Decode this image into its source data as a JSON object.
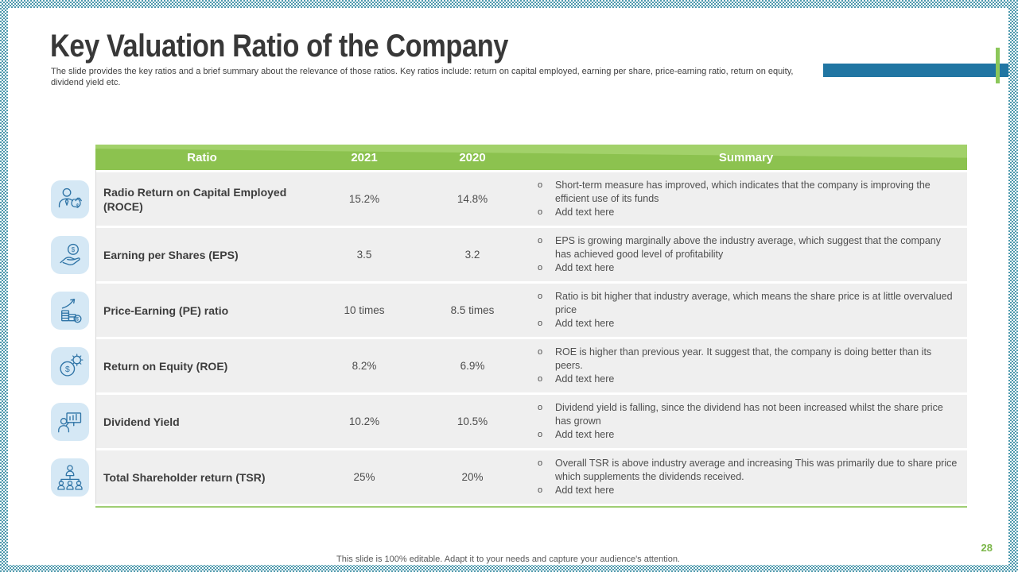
{
  "slide": {
    "title": "Key Valuation Ratio of the Company",
    "subtitle": "The slide provides the key ratios and a brief summary about the relevance of those ratios. Key ratios include: return on capital employed, earning per share, price-earning ratio, return on equity,  dividend yield etc.",
    "footer": "This slide is 100% editable. Adapt it to your needs and capture your audience's attention.",
    "page_number": "28"
  },
  "colors": {
    "accent_green": "#8cc24f",
    "accent_blue": "#2176a3",
    "tick_green": "#8cc75a",
    "icon_stroke_blue": "#2f74a6",
    "icon_bg_blue": "#d5e8f5",
    "row_bg": "#efefef",
    "border_teal": "#4d99ad",
    "page_number_green": "#7ab648"
  },
  "table": {
    "headers": [
      "Ratio",
      "2021",
      "2020",
      "Summary"
    ],
    "rows": [
      {
        "icon": "businessman-money-bag-icon",
        "ratio": "Radio Return on Capital Employed (ROCE)",
        "y2021": "15.2%",
        "y2020": "14.8%",
        "summary": [
          "Short-term measure has improved, which indicates that the company is improving the efficient use of its funds",
          "Add text here"
        ]
      },
      {
        "icon": "hand-dollar-coin-icon",
        "ratio": "Earning per Shares (EPS)",
        "y2021": "3.5",
        "y2020": "3.2",
        "summary": [
          "EPS is growing marginally above the industry average, which suggest that the company has achieved good level of profitability",
          "Add text here"
        ]
      },
      {
        "icon": "coins-growth-arrow-icon",
        "ratio": "Price-Earning (PE) ratio",
        "y2021": "10 times",
        "y2020": "8.5 times",
        "summary": [
          "Ratio is bit higher that industry average, which means the share price is at little overvalued  price",
          "Add text here"
        ]
      },
      {
        "icon": "dollar-gear-icon",
        "ratio": "Return on Equity (ROE)",
        "y2021": "8.2%",
        "y2020": "6.9%",
        "summary": [
          "ROE is higher than previous year. It suggest that, the company is doing better than its peers.",
          "Add text here"
        ]
      },
      {
        "icon": "presenter-chart-icon",
        "ratio": "Dividend Yield",
        "y2021": "10.2%",
        "y2020": "10.5%",
        "summary": [
          "Dividend yield is falling, since the dividend has not been increased whilst the share price has grown",
          "Add text here"
        ]
      },
      {
        "icon": "org-chart-people-icon",
        "ratio": "Total Shareholder return (TSR)",
        "y2021": "25%",
        "y2020": "20%",
        "summary": [
          "Overall TSR is above industry average and increasing This was primarily due to share price which supplements the dividends received.",
          "Add text here"
        ]
      }
    ]
  }
}
